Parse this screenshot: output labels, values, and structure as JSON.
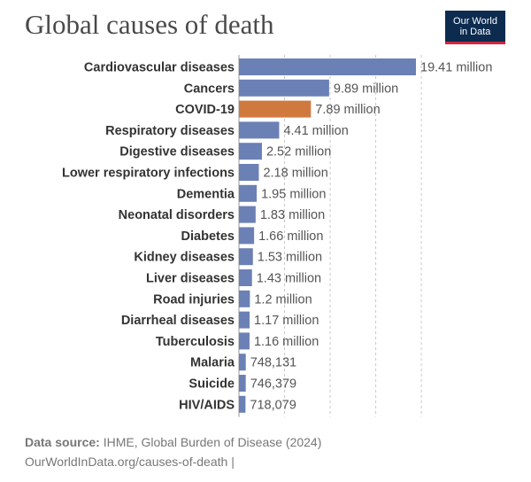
{
  "title": "Global causes of death",
  "logo": {
    "line1": "Our World",
    "line2": "in Data"
  },
  "footer": {
    "source_label": "Data source:",
    "source_text": "IHME, Global Burden of Disease (2024)",
    "url": "OurWorldInData.org/causes-of-death |"
  },
  "colors": {
    "bar": "#6b80b5",
    "highlight": "#d0793f",
    "grid": "#c8c8c8"
  },
  "chart_data": {
    "type": "bar",
    "orientation": "horizontal",
    "title": "Global causes of death",
    "xlim": [
      0,
      20000000
    ],
    "gridlines": [
      0,
      5000000,
      10000000,
      15000000,
      20000000
    ],
    "highlight": "COVID-19",
    "categories": [
      "Cardiovascular diseases",
      "Cancers",
      "COVID-19",
      "Respiratory diseases",
      "Digestive diseases",
      "Lower respiratory infections",
      "Dementia",
      "Neonatal disorders",
      "Diabetes",
      "Kidney diseases",
      "Liver diseases",
      "Road injuries",
      "Diarrheal diseases",
      "Tuberculosis",
      "Malaria",
      "Suicide",
      "HIV/AIDS"
    ],
    "values": [
      19410000,
      9890000,
      7890000,
      4410000,
      2520000,
      2180000,
      1950000,
      1830000,
      1660000,
      1530000,
      1430000,
      1200000,
      1170000,
      1160000,
      748131,
      746379,
      718079
    ],
    "value_labels": [
      "19.41 million",
      "9.89 million",
      "7.89 million",
      "4.41 million",
      "2.52 million",
      "2.18 million",
      "1.95 million",
      "1.83 million",
      "1.66 million",
      "1.53 million",
      "1.43 million",
      "1.2 million",
      "1.17 million",
      "1.16 million",
      "748,131",
      "746,379",
      "718,079"
    ]
  }
}
